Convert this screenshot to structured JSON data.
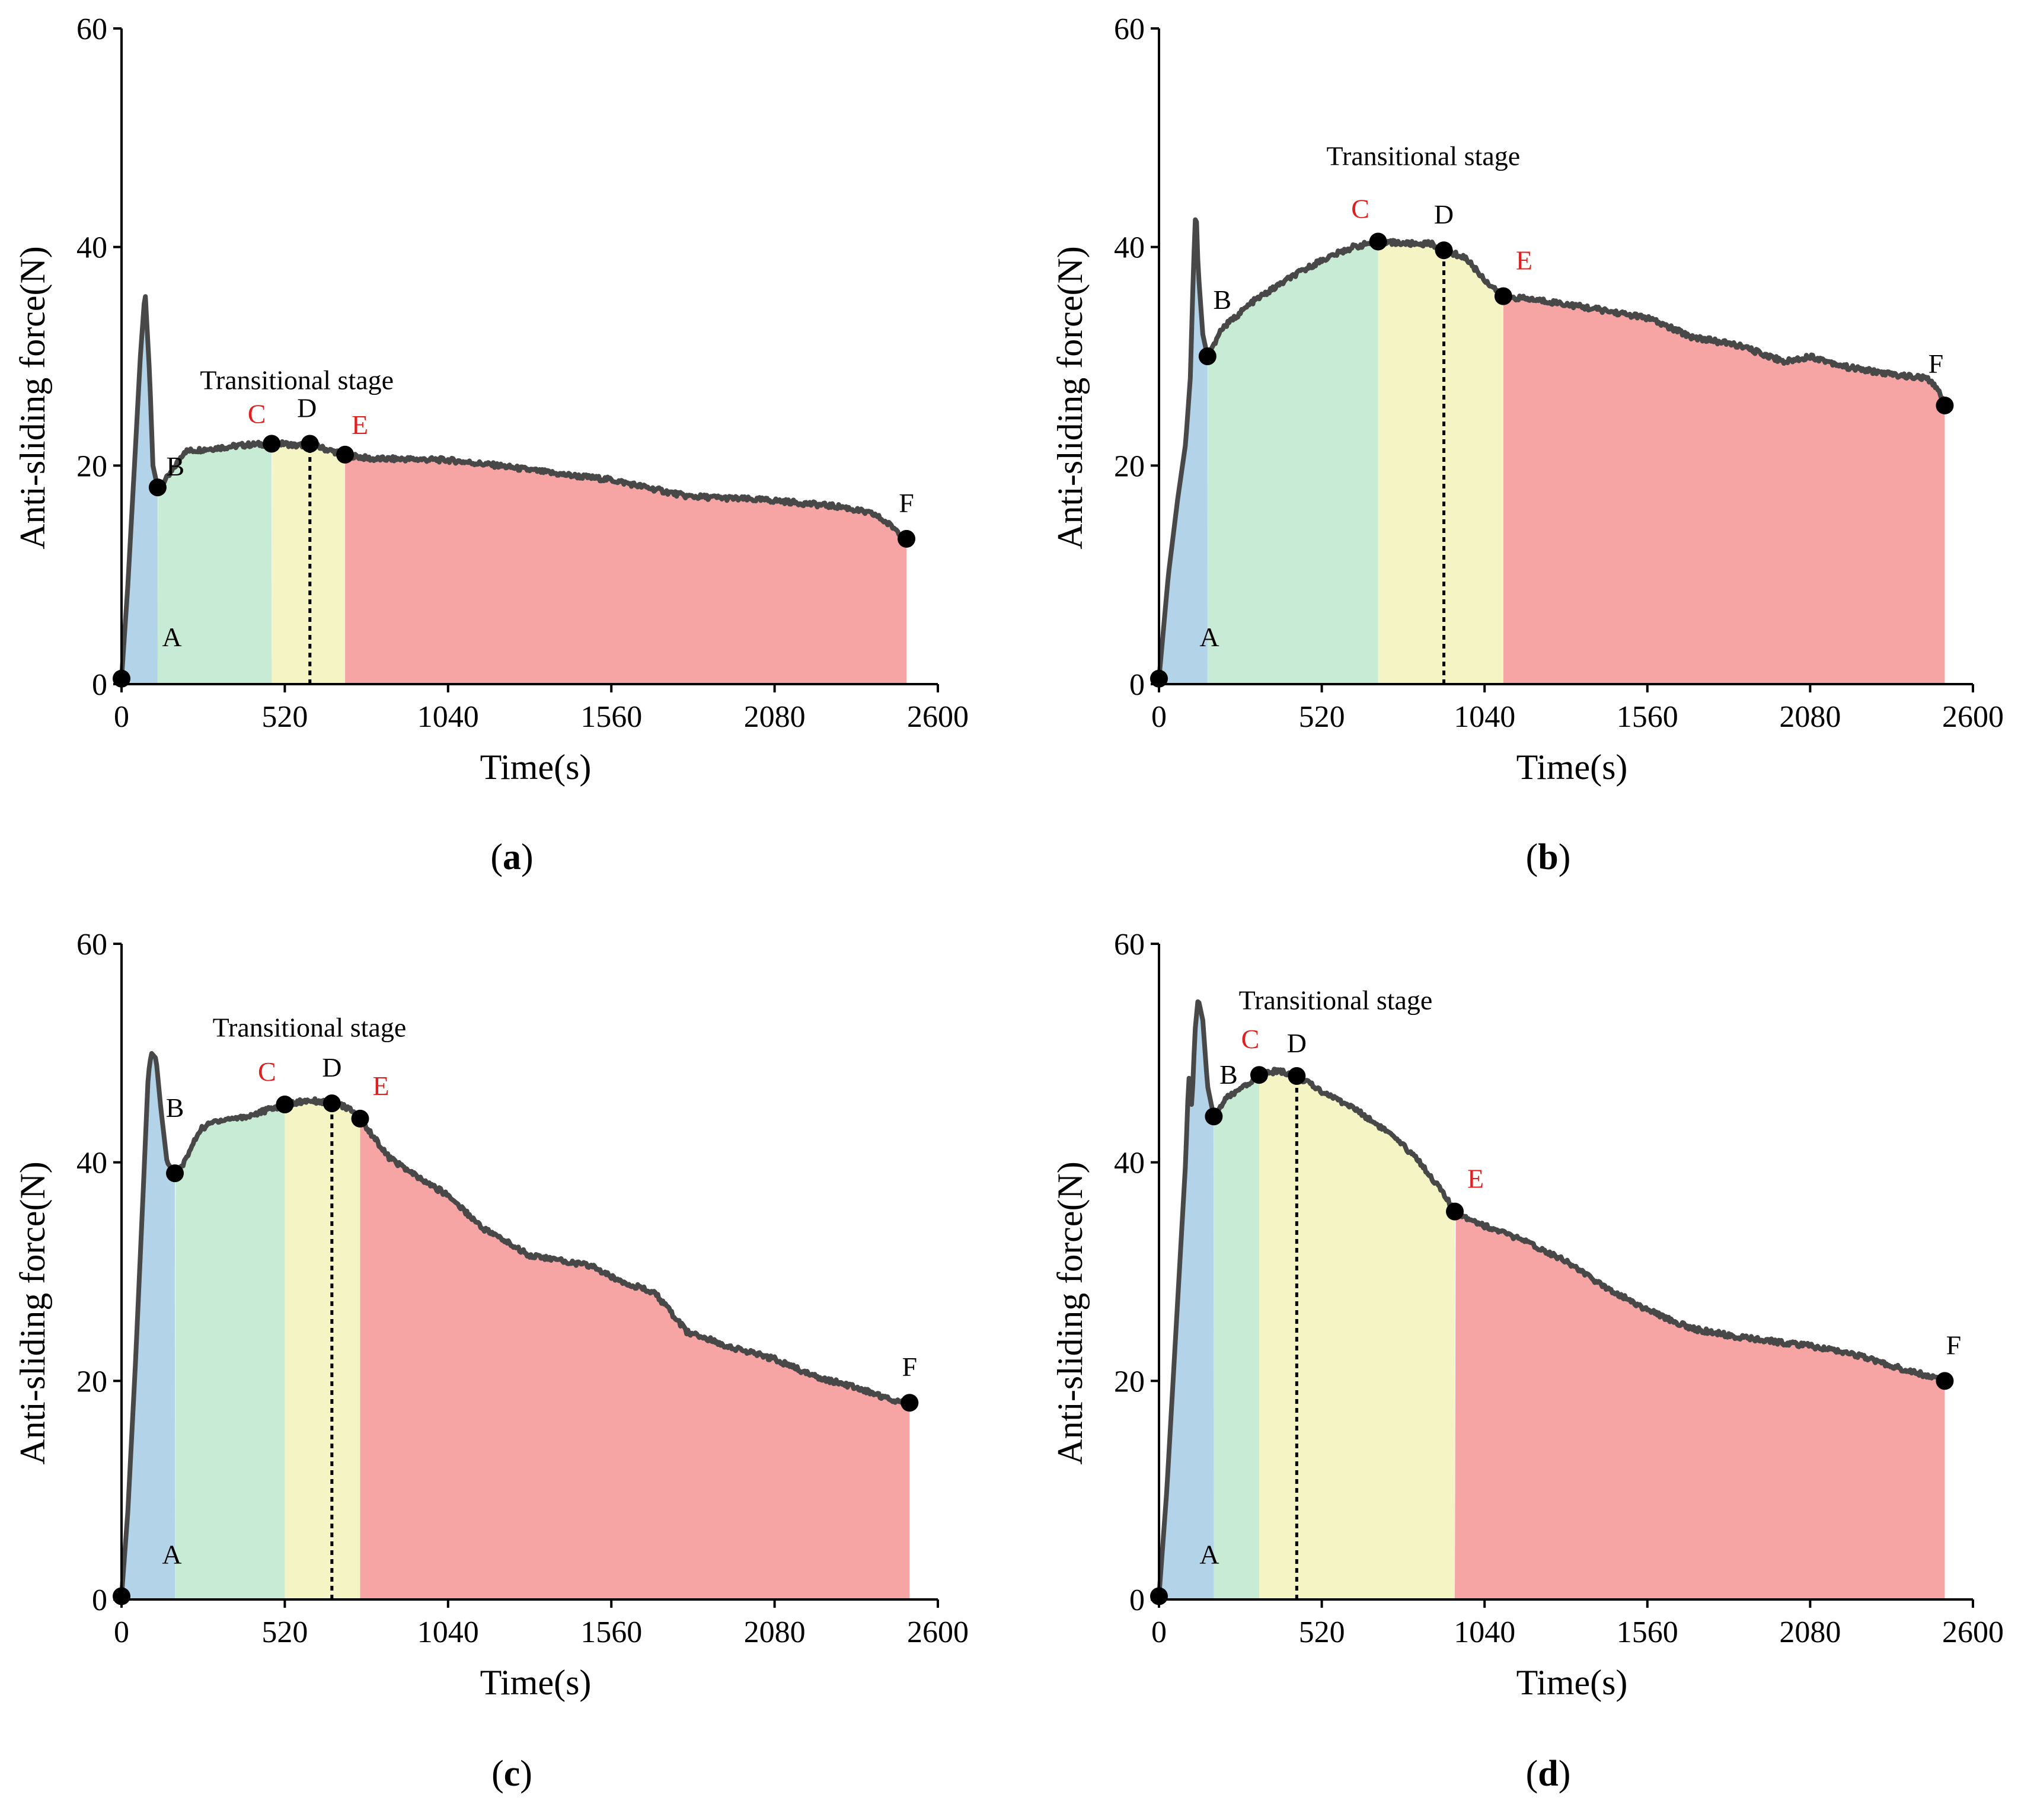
{
  "figure": {
    "colors": {
      "stage1": "#b3d3e8",
      "stage2": "#c8ebd6",
      "stage3": "#f4f4c4",
      "stage4": "#f6a4a4",
      "curve": "#484848",
      "point": "#000000",
      "red_label": "#e02020",
      "black_label": "#000000"
    },
    "annotation_text": "Transitional stage"
  },
  "chart_data": [
    {
      "type": "area",
      "panel_open": "(",
      "panel_letter": "a",
      "panel_close": ")",
      "xlabel": "Time(s)",
      "ylabel": "Anti-sliding force(N)",
      "xlim": [
        0,
        2600
      ],
      "ylim": [
        0,
        60
      ],
      "xticks": [
        0,
        520,
        1040,
        1560,
        2080,
        2600
      ],
      "yticks": [
        0,
        20,
        40,
        60
      ],
      "annotation": "Transitional stage",
      "annotation_at": [
        250,
        27
      ],
      "stage_bounds": [
        0,
        115,
        478,
        712,
        2500
      ],
      "dotted_line_x": 600,
      "points": [
        {
          "label": "A",
          "x": 0,
          "y": 0.5,
          "color": "black",
          "label_dx": 85,
          "label_dy": -55
        },
        {
          "label": "B",
          "x": 115,
          "y": 18,
          "color": "black",
          "label_dx": 30,
          "label_dy": -20
        },
        {
          "label": "C",
          "x": 478,
          "y": 22,
          "color": "red",
          "label_dx": -25,
          "label_dy": -35
        },
        {
          "label": "D",
          "x": 600,
          "y": 22,
          "color": "black",
          "label_dx": -5,
          "label_dy": -45
        },
        {
          "label": "E",
          "x": 712,
          "y": 21,
          "color": "red",
          "label_dx": 25,
          "label_dy": -35
        },
        {
          "label": "F",
          "x": 2500,
          "y": 13.3,
          "color": "black",
          "label_dx": 0,
          "label_dy": -45
        }
      ],
      "curve": [
        [
          0,
          0.5
        ],
        [
          20,
          9
        ],
        [
          45,
          22
        ],
        [
          60,
          30
        ],
        [
          75,
          36
        ],
        [
          90,
          28
        ],
        [
          100,
          20
        ],
        [
          115,
          18
        ],
        [
          150,
          19
        ],
        [
          200,
          21.3
        ],
        [
          300,
          21.6
        ],
        [
          400,
          21.9
        ],
        [
          478,
          22
        ],
        [
          520,
          22
        ],
        [
          560,
          21.8
        ],
        [
          600,
          22
        ],
        [
          650,
          21.5
        ],
        [
          712,
          21
        ],
        [
          800,
          20.6
        ],
        [
          900,
          20.6
        ],
        [
          1040,
          20.5
        ],
        [
          1200,
          20
        ],
        [
          1400,
          19.2
        ],
        [
          1560,
          18.7
        ],
        [
          1800,
          17.2
        ],
        [
          2080,
          16.8
        ],
        [
          2300,
          16.2
        ],
        [
          2400,
          15.5
        ],
        [
          2460,
          14.3
        ],
        [
          2500,
          13.3
        ]
      ]
    },
    {
      "type": "area",
      "panel_open": "(",
      "panel_letter": "b",
      "panel_close": ")",
      "xlabel": "Time(s)",
      "ylabel": "Anti-sliding force(N)",
      "xlim": [
        0,
        2600
      ],
      "ylim": [
        0,
        60
      ],
      "xticks": [
        0,
        520,
        1040,
        1560,
        2080,
        2600
      ],
      "yticks": [
        0,
        20,
        40,
        60
      ],
      "annotation": "Transitional stage",
      "annotation_at": [
        535,
        47.5
      ],
      "stage_bounds": [
        0,
        155,
        700,
        1100,
        2510
      ],
      "dotted_line_x": 910,
      "points": [
        {
          "label": "A",
          "x": 0,
          "y": 0.5,
          "color": "black",
          "label_dx": 85,
          "label_dy": -55
        },
        {
          "label": "B",
          "x": 155,
          "y": 30,
          "color": "black",
          "label_dx": 25,
          "label_dy": -80
        },
        {
          "label": "C",
          "x": 700,
          "y": 40.5,
          "color": "red",
          "label_dx": -30,
          "label_dy": -40
        },
        {
          "label": "D",
          "x": 910,
          "y": 39.7,
          "color": "black",
          "label_dx": 0,
          "label_dy": -45
        },
        {
          "label": "E",
          "x": 1100,
          "y": 35.5,
          "color": "red",
          "label_dx": 35,
          "label_dy": -45
        },
        {
          "label": "F",
          "x": 2510,
          "y": 25.5,
          "color": "black",
          "label_dx": -15,
          "label_dy": -55
        }
      ],
      "curve": [
        [
          0,
          0.5
        ],
        [
          30,
          10
        ],
        [
          60,
          17
        ],
        [
          85,
          22
        ],
        [
          100,
          28
        ],
        [
          110,
          38
        ],
        [
          118,
          44
        ],
        [
          125,
          38
        ],
        [
          140,
          32
        ],
        [
          155,
          30
        ],
        [
          200,
          32.5
        ],
        [
          300,
          35
        ],
        [
          420,
          37.2
        ],
        [
          520,
          38.8
        ],
        [
          620,
          40
        ],
        [
          700,
          40.5
        ],
        [
          800,
          40.3
        ],
        [
          870,
          40.3
        ],
        [
          910,
          39.7
        ],
        [
          980,
          39
        ],
        [
          1040,
          37
        ],
        [
          1100,
          35.5
        ],
        [
          1250,
          35
        ],
        [
          1400,
          34.3
        ],
        [
          1560,
          33.5
        ],
        [
          1700,
          31.8
        ],
        [
          1850,
          31
        ],
        [
          2000,
          29.5
        ],
        [
          2080,
          30
        ],
        [
          2200,
          29
        ],
        [
          2350,
          28.3
        ],
        [
          2450,
          28
        ],
        [
          2490,
          27
        ],
        [
          2510,
          25.5
        ]
      ]
    },
    {
      "type": "area",
      "panel_open": "(",
      "panel_letter": "c",
      "panel_close": ")",
      "xlabel": "Time(s)",
      "ylabel": "Anti-sliding force(N)",
      "xlim": [
        0,
        2600
      ],
      "ylim": [
        0,
        60
      ],
      "xticks": [
        0,
        520,
        1040,
        1560,
        2080,
        2600
      ],
      "yticks": [
        0,
        20,
        40,
        60
      ],
      "annotation": "Transitional stage",
      "annotation_at": [
        290,
        51.5
      ],
      "stage_bounds": [
        0,
        170,
        520,
        760,
        2510
      ],
      "dotted_line_x": 670,
      "points": [
        {
          "label": "A",
          "x": 0,
          "y": 0.3,
          "color": "black",
          "label_dx": 85,
          "label_dy": -55
        },
        {
          "label": "B",
          "x": 170,
          "y": 39,
          "color": "black",
          "label_dx": 0,
          "label_dy": -95
        },
        {
          "label": "C",
          "x": 520,
          "y": 45.3,
          "color": "red",
          "label_dx": -30,
          "label_dy": -40
        },
        {
          "label": "D",
          "x": 670,
          "y": 45.4,
          "color": "black",
          "label_dx": 0,
          "label_dy": -45
        },
        {
          "label": "E",
          "x": 760,
          "y": 44,
          "color": "red",
          "label_dx": 35,
          "label_dy": -40
        },
        {
          "label": "F",
          "x": 2510,
          "y": 18,
          "color": "black",
          "label_dx": 0,
          "label_dy": -45
        }
      ],
      "curve": [
        [
          0,
          0.3
        ],
        [
          20,
          8
        ],
        [
          45,
          22
        ],
        [
          70,
          38
        ],
        [
          85,
          48
        ],
        [
          95,
          50
        ],
        [
          110,
          49.5
        ],
        [
          125,
          45
        ],
        [
          145,
          40
        ],
        [
          170,
          39
        ],
        [
          200,
          40
        ],
        [
          250,
          43
        ],
        [
          300,
          43.8
        ],
        [
          400,
          44.2
        ],
        [
          520,
          45.3
        ],
        [
          600,
          45.7
        ],
        [
          670,
          45.4
        ],
        [
          720,
          45
        ],
        [
          760,
          44
        ],
        [
          850,
          40.5
        ],
        [
          950,
          38.5
        ],
        [
          1040,
          37
        ],
        [
          1150,
          34
        ],
        [
          1300,
          31.5
        ],
        [
          1400,
          31
        ],
        [
          1500,
          30.5
        ],
        [
          1560,
          29.5
        ],
        [
          1700,
          28
        ],
        [
          1800,
          24.5
        ],
        [
          1950,
          23
        ],
        [
          2080,
          22
        ],
        [
          2200,
          20.5
        ],
        [
          2350,
          19.3
        ],
        [
          2450,
          18.3
        ],
        [
          2510,
          18
        ]
      ]
    },
    {
      "type": "area",
      "panel_open": "(",
      "panel_letter": "d",
      "panel_close": ")",
      "xlabel": "Time(s)",
      "ylabel": "Anti-sliding force(N)",
      "xlim": [
        0,
        2600
      ],
      "ylim": [
        0,
        60
      ],
      "xticks": [
        0,
        520,
        1040,
        1560,
        2080,
        2600
      ],
      "yticks": [
        0,
        20,
        40,
        60
      ],
      "annotation": "Transitional stage",
      "annotation_at": [
        255,
        54
      ],
      "stage_bounds": [
        0,
        175,
        320,
        945,
        2510
      ],
      "dotted_line_x": 440,
      "points": [
        {
          "label": "A",
          "x": 0,
          "y": 0.3,
          "color": "black",
          "label_dx": 85,
          "label_dy": -55
        },
        {
          "label": "B",
          "x": 175,
          "y": 44.2,
          "color": "black",
          "label_dx": 25,
          "label_dy": -55
        },
        {
          "label": "C",
          "x": 320,
          "y": 48,
          "color": "red",
          "label_dx": -15,
          "label_dy": -45
        },
        {
          "label": "D",
          "x": 440,
          "y": 47.9,
          "color": "black",
          "label_dx": 0,
          "label_dy": -40
        },
        {
          "label": "E",
          "x": 945,
          "y": 35.5,
          "color": "red",
          "label_dx": 35,
          "label_dy": -40
        },
        {
          "label": "F",
          "x": 2510,
          "y": 20,
          "color": "black",
          "label_dx": 15,
          "label_dy": -45
        }
      ],
      "curve": [
        [
          0,
          0.3
        ],
        [
          25,
          10
        ],
        [
          55,
          25
        ],
        [
          85,
          40
        ],
        [
          95,
          48
        ],
        [
          105,
          45
        ],
        [
          115,
          52
        ],
        [
          125,
          55
        ],
        [
          140,
          53
        ],
        [
          155,
          47
        ],
        [
          175,
          44.2
        ],
        [
          220,
          46
        ],
        [
          280,
          47
        ],
        [
          320,
          48
        ],
        [
          380,
          48.4
        ],
        [
          440,
          47.9
        ],
        [
          520,
          46.5
        ],
        [
          620,
          45
        ],
        [
          720,
          43
        ],
        [
          820,
          40.5
        ],
        [
          900,
          37.5
        ],
        [
          945,
          35.5
        ],
        [
          1040,
          34.2
        ],
        [
          1150,
          33
        ],
        [
          1300,
          31
        ],
        [
          1400,
          29
        ],
        [
          1560,
          26.5
        ],
        [
          1700,
          24.8
        ],
        [
          1850,
          24
        ],
        [
          2080,
          23.2
        ],
        [
          2200,
          22.6
        ],
        [
          2350,
          21.3
        ],
        [
          2450,
          20.5
        ],
        [
          2510,
          20
        ]
      ]
    }
  ]
}
